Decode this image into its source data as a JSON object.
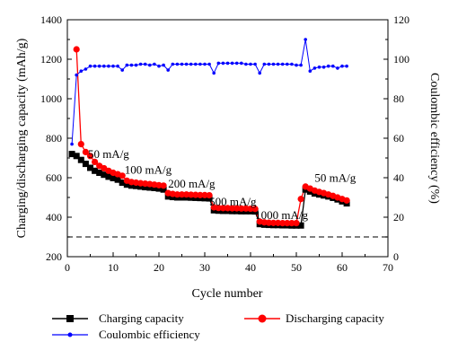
{
  "chart_data": {
    "type": "line",
    "xlabel": "Cycle number",
    "ylabel_left": "Charging/discharging capacity (mAh/g)",
    "ylabel_right": "Coulombic efficiency (%)",
    "xlim": [
      0,
      70
    ],
    "ylim_left": [
      200,
      1400
    ],
    "ylim_right": [
      0,
      120
    ],
    "x_ticks": [
      0,
      10,
      20,
      30,
      40,
      50,
      60,
      70
    ],
    "y_left_ticks": [
      200,
      400,
      600,
      800,
      1000,
      1200,
      1400
    ],
    "y_right_ticks": [
      0,
      20,
      40,
      60,
      80,
      100,
      120
    ],
    "grid": false,
    "legend_placement": "bottom",
    "reference_line": {
      "y": 300,
      "axis": "left",
      "style": "dashed",
      "color": "#333333"
    },
    "series": [
      {
        "name": "Charging capacity",
        "axis": "left",
        "color": "#000000",
        "marker": "square",
        "x": [
          1,
          2,
          3,
          4,
          5,
          6,
          7,
          8,
          9,
          10,
          11,
          12,
          13,
          14,
          15,
          16,
          17,
          18,
          19,
          20,
          21,
          22,
          23,
          24,
          25,
          26,
          27,
          28,
          29,
          30,
          31,
          32,
          33,
          34,
          35,
          36,
          37,
          38,
          39,
          40,
          41,
          42,
          43,
          44,
          45,
          46,
          47,
          48,
          49,
          50,
          51,
          52,
          53,
          54,
          55,
          56,
          57,
          58,
          59,
          60,
          61
        ],
        "values": [
          720,
          710,
          690,
          670,
          650,
          635,
          625,
          615,
          605,
          598,
          590,
          575,
          565,
          560,
          558,
          555,
          552,
          550,
          548,
          545,
          540,
          505,
          502,
          500,
          500,
          500,
          499,
          498,
          497,
          496,
          495,
          435,
          433,
          432,
          432,
          431,
          431,
          430,
          430,
          430,
          429,
          365,
          362,
          361,
          360,
          360,
          359,
          359,
          358,
          358,
          358,
          540,
          530,
          520,
          515,
          510,
          505,
          498,
          490,
          480,
          470
        ]
      },
      {
        "name": "Discharging capacity",
        "axis": "left",
        "color": "#ff0000",
        "marker": "circle",
        "x": [
          2,
          3,
          4,
          5,
          6,
          7,
          8,
          9,
          10,
          11,
          12,
          13,
          14,
          15,
          16,
          17,
          18,
          19,
          20,
          21,
          22,
          23,
          24,
          25,
          26,
          27,
          28,
          29,
          30,
          31,
          32,
          33,
          34,
          35,
          36,
          37,
          38,
          39,
          40,
          41,
          42,
          43,
          44,
          45,
          46,
          47,
          48,
          49,
          50,
          51,
          52,
          53,
          54,
          55,
          56,
          57,
          58,
          59,
          60,
          61
        ],
        "values": [
          1250,
          770,
          730,
          710,
          680,
          660,
          648,
          635,
          625,
          618,
          610,
          585,
          578,
          575,
          572,
          570,
          568,
          565,
          562,
          560,
          522,
          518,
          515,
          515,
          515,
          514,
          513,
          512,
          512,
          511,
          450,
          447,
          446,
          446,
          445,
          445,
          444,
          444,
          443,
          442,
          378,
          374,
          372,
          371,
          371,
          370,
          370,
          370,
          370,
          492,
          555,
          545,
          535,
          528,
          522,
          515,
          508,
          500,
          492,
          485
        ]
      },
      {
        "name": "Coulombic efficiency",
        "axis": "right",
        "color": "#0000ff",
        "marker": "dot",
        "x": [
          1,
          2,
          3,
          4,
          5,
          6,
          7,
          8,
          9,
          10,
          11,
          12,
          13,
          14,
          15,
          16,
          17,
          18,
          19,
          20,
          21,
          22,
          23,
          24,
          25,
          26,
          27,
          28,
          29,
          30,
          31,
          32,
          33,
          34,
          35,
          36,
          37,
          38,
          39,
          40,
          41,
          42,
          43,
          44,
          45,
          46,
          47,
          48,
          49,
          50,
          51,
          52,
          53,
          54,
          55,
          56,
          57,
          58,
          59,
          60,
          61
        ],
        "values": [
          57,
          92,
          94,
          95,
          96.5,
          96.5,
          96.5,
          96.5,
          96.5,
          96.5,
          96.5,
          94.5,
          97,
          97,
          97,
          97.5,
          97.5,
          97,
          97.5,
          96.5,
          97,
          94.5,
          97.5,
          97.5,
          97.5,
          97.5,
          97.5,
          97.5,
          97.5,
          97.5,
          97.5,
          93,
          98,
          98,
          98,
          98,
          98,
          98,
          97.5,
          97.5,
          97.5,
          93,
          97.5,
          97.5,
          97.5,
          97.5,
          97.5,
          97.5,
          97.5,
          97,
          97,
          110,
          94,
          95.5,
          96,
          96,
          96.5,
          96.5,
          95.5,
          96.5,
          96.5
        ]
      }
    ],
    "annotations": [
      {
        "text": "50 mA/g",
        "x": 4.5,
        "y": 700
      },
      {
        "text": "100 mA/g",
        "x": 12.5,
        "y": 620
      },
      {
        "text": "200 mA/g",
        "x": 22,
        "y": 550
      },
      {
        "text": "500 mA/g",
        "x": 31,
        "y": 460
      },
      {
        "text": "1000 mA/g",
        "x": 41,
        "y": 390
      },
      {
        "text": "50 mA/g",
        "x": 54,
        "y": 580
      }
    ]
  }
}
